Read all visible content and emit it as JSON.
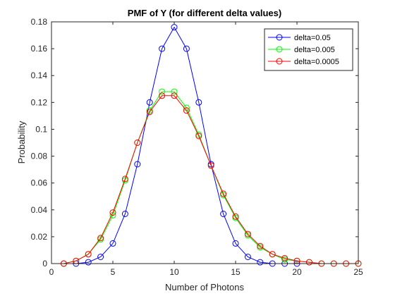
{
  "chart_data": {
    "type": "line",
    "title": "PMF of Y (for different delta values)",
    "xlabel": "Number of Photons",
    "ylabel": "Probability",
    "xlim": [
      0,
      25
    ],
    "ylim": [
      0,
      0.18
    ],
    "xticks": [
      0,
      5,
      10,
      15,
      20,
      25
    ],
    "yticks": [
      0,
      0.02,
      0.04,
      0.06,
      0.08,
      0.1,
      0.12,
      0.14,
      0.16,
      0.18
    ],
    "grid": false,
    "legend_position": "top-right",
    "marker": "circle",
    "series": [
      {
        "name": "delta=0.05",
        "color": "#0000ff",
        "x": [
          1,
          2,
          3,
          4,
          5,
          6,
          7,
          8,
          9,
          10,
          11,
          12,
          13,
          14,
          15,
          16,
          17,
          18,
          19,
          20
        ],
        "y": [
          0.0,
          0.0,
          0.001,
          0.005,
          0.015,
          0.037,
          0.074,
          0.12,
          0.16,
          0.176,
          0.16,
          0.12,
          0.074,
          0.037,
          0.015,
          0.005,
          0.001,
          0.0,
          0.0,
          0.0
        ]
      },
      {
        "name": "delta=0.005",
        "color": "#00ff00",
        "x": [
          1,
          2,
          3,
          4,
          5,
          6,
          7,
          8,
          9,
          10,
          11,
          12,
          13,
          14,
          15,
          16,
          17,
          18,
          19,
          20,
          21,
          22,
          23,
          24,
          25
        ],
        "y": [
          0.0,
          0.002,
          0.007,
          0.018,
          0.036,
          0.062,
          0.09,
          0.114,
          0.128,
          0.128,
          0.116,
          0.096,
          0.073,
          0.051,
          0.034,
          0.021,
          0.012,
          0.007,
          0.003,
          0.002,
          0.001,
          0.0,
          0.0,
          0.0,
          0.0
        ]
      },
      {
        "name": "delta=0.0005",
        "color": "#ff0000",
        "x": [
          1,
          2,
          3,
          4,
          5,
          6,
          7,
          8,
          9,
          10,
          11,
          12,
          13,
          14,
          15,
          16,
          17,
          18,
          19,
          20,
          21,
          22,
          23,
          24,
          25
        ],
        "y": [
          0.0,
          0.002,
          0.007,
          0.019,
          0.038,
          0.063,
          0.09,
          0.113,
          0.125,
          0.125,
          0.114,
          0.095,
          0.073,
          0.052,
          0.035,
          0.022,
          0.013,
          0.007,
          0.004,
          0.002,
          0.001,
          0.0,
          0.0,
          0.0,
          0.0
        ]
      }
    ]
  }
}
